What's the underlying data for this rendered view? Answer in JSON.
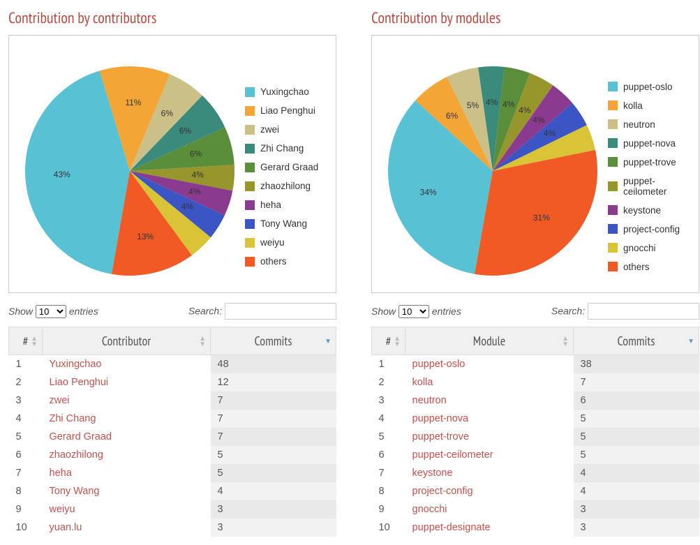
{
  "palette": [
    "#58c1d4",
    "#f3a536",
    "#ccc089",
    "#3b8b7d",
    "#5b8e3b",
    "#97962d",
    "#8a3b8f",
    "#3b56c4",
    "#d9c437",
    "#f15a24"
  ],
  "label_color": "#333333",
  "title_color": "#b94840",
  "link_color": "#c1534e",
  "pie_radius": 150,
  "label_fontsize": 12,
  "contributors": {
    "title": "Contribution by contributors",
    "legend": [
      "Yuxingchao",
      "Liao Penghui",
      "zwei",
      "Zhi Chang",
      "Gerard Graad",
      "zhaozhilong",
      "heha",
      "Tony Wang",
      "weiyu",
      "others"
    ],
    "pct": [
      43,
      11,
      6,
      6,
      6,
      4,
      4,
      4,
      4,
      13
    ],
    "pct_labels": [
      "43%",
      "11%",
      "6%",
      "6%",
      "6%",
      "4%",
      "4%",
      "4%",
      "",
      "13%"
    ],
    "controls": {
      "show": "Show",
      "entries": "entries",
      "options": [
        "10",
        "25",
        "50",
        "100"
      ],
      "selected": "10",
      "search": "Search:"
    },
    "columns": [
      "#",
      "Contributor",
      "Commits"
    ],
    "rows": [
      [
        "1",
        "Yuxingchao",
        "48"
      ],
      [
        "2",
        "Liao Penghui",
        "12"
      ],
      [
        "3",
        "zwei",
        "7"
      ],
      [
        "4",
        "Zhi Chang",
        "7"
      ],
      [
        "5",
        "Gerard Graad",
        "7"
      ],
      [
        "6",
        "zhaozhilong",
        "5"
      ],
      [
        "7",
        "heha",
        "5"
      ],
      [
        "8",
        "Tony Wang",
        "4"
      ],
      [
        "9",
        "weiyu",
        "3"
      ],
      [
        "10",
        "yuan.lu",
        "3"
      ]
    ]
  },
  "modules": {
    "title": "Contribution by modules",
    "legend": [
      "puppet-oslo",
      "kolla",
      "neutron",
      "puppet-nova",
      "puppet-trove",
      "puppet-ceilometer",
      "keystone",
      "project-config",
      "gnocchi",
      "others"
    ],
    "pct": [
      34,
      6,
      5,
      4,
      4,
      4,
      4,
      4,
      4,
      31
    ],
    "pct_labels": [
      "34%",
      "6%",
      "5%",
      "4%",
      "4%",
      "4%",
      "4%",
      "4%",
      "",
      "31%"
    ],
    "controls": {
      "show": "Show",
      "entries": "entries",
      "options": [
        "10",
        "25",
        "50",
        "100"
      ],
      "selected": "10",
      "search": "Search:"
    },
    "columns": [
      "#",
      "Module",
      "Commits"
    ],
    "rows": [
      [
        "1",
        "puppet-oslo",
        "38"
      ],
      [
        "2",
        "kolla",
        "7"
      ],
      [
        "3",
        "neutron",
        "6"
      ],
      [
        "4",
        "puppet-nova",
        "5"
      ],
      [
        "5",
        "puppet-trove",
        "5"
      ],
      [
        "6",
        "puppet-ceilometer",
        "5"
      ],
      [
        "7",
        "keystone",
        "4"
      ],
      [
        "8",
        "project-config",
        "4"
      ],
      [
        "9",
        "gnocchi",
        "3"
      ],
      [
        "10",
        "puppet-designate",
        "3"
      ]
    ]
  }
}
